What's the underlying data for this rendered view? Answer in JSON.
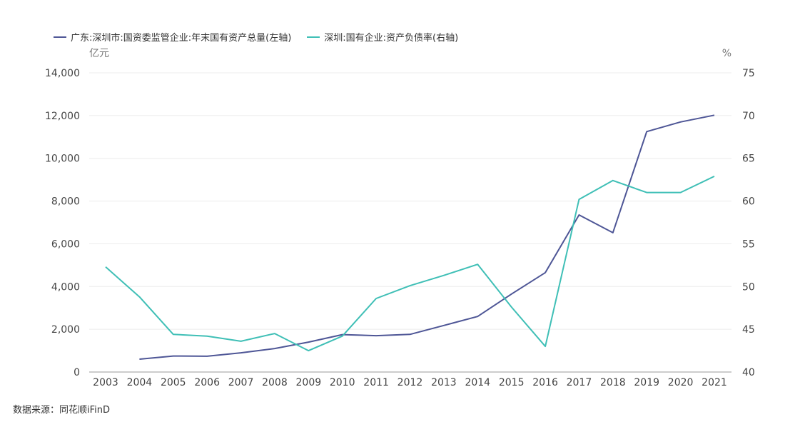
{
  "chart_data": {
    "type": "line",
    "x": [
      "2003",
      "2004",
      "2005",
      "2006",
      "2007",
      "2008",
      "2009",
      "2010",
      "2011",
      "2012",
      "2013",
      "2014",
      "2015",
      "2016",
      "2017",
      "2018",
      "2019",
      "2020",
      "2021"
    ],
    "series": [
      {
        "name": "广东:深圳市:国资委监管企业:年末国有资产总量(左轴)",
        "axis": "left",
        "color": "#4e5696",
        "values": [
          null,
          600,
          750,
          740,
          900,
          1100,
          1400,
          1750,
          1700,
          1760,
          2180,
          2600,
          3650,
          4650,
          7350,
          6520,
          11250,
          11700,
          12020
        ]
      },
      {
        "name": "深圳:国有企业:资产负债率(右轴)",
        "axis": "right",
        "color": "#3fbfb6",
        "values": [
          52.3,
          48.8,
          44.4,
          44.2,
          43.6,
          44.5,
          42.5,
          44.2,
          48.6,
          50.1,
          51.3,
          52.6,
          47.6,
          43.0,
          60.2,
          62.4,
          61.0,
          61.0,
          62.9
        ]
      }
    ],
    "y_left": {
      "unit": "亿元",
      "ylim": [
        0,
        14000
      ],
      "ticks": [
        0,
        2000,
        4000,
        6000,
        8000,
        10000,
        12000,
        14000
      ],
      "tick_labels": [
        "0",
        "2,000",
        "4,000",
        "6,000",
        "8,000",
        "10,000",
        "12,000",
        "14,000"
      ]
    },
    "y_right": {
      "unit": "%",
      "ylim": [
        40,
        75
      ],
      "ticks": [
        40,
        45,
        50,
        55,
        60,
        65,
        70,
        75
      ],
      "tick_labels": [
        "40",
        "45",
        "50",
        "55",
        "60",
        "65",
        "70",
        "75"
      ]
    },
    "grid": true,
    "legend_position": "top-left"
  },
  "source_text": "数据来源：同花顺iFinD"
}
